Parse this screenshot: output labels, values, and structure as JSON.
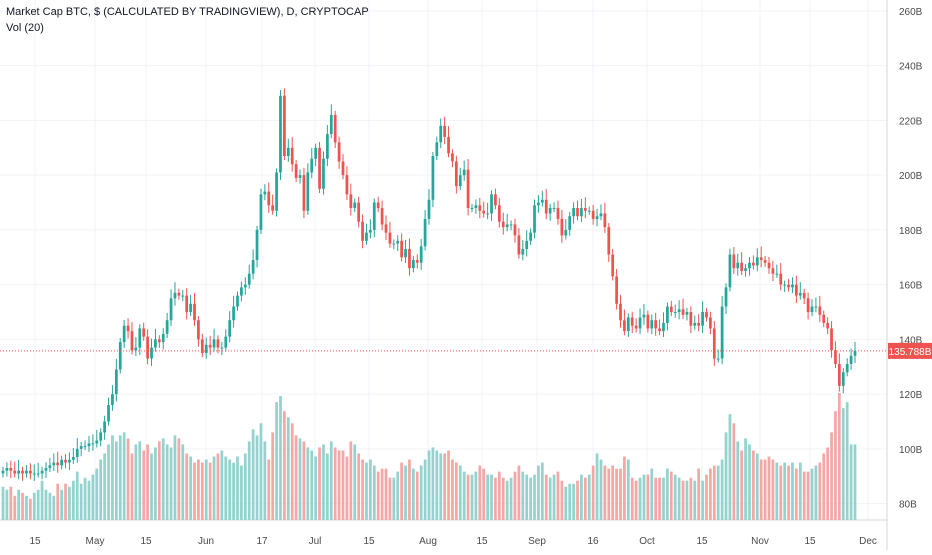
{
  "legend": {
    "title": "Market Cap BTC, $ (CALCULATED BY TRADINGVIEW), D, CRYPTOCAP",
    "indicator": "Vol (20)"
  },
  "last_price_label": "135.788B",
  "colors": {
    "up": "#26a69a",
    "down": "#ef5350",
    "vol_up": "#94d3cd",
    "vol_down": "#f5a7a6",
    "grid": "#f0f3fa",
    "axis_text": "#4a4a4a",
    "price_line": "#ef5350"
  },
  "chart_data": {
    "type": "candlestick",
    "x_tick_labels": [
      "15",
      "May",
      "15",
      "Jun",
      "17",
      "Jul",
      "15",
      "Aug",
      "15",
      "Sep",
      "16",
      "Oct",
      "15",
      "Nov",
      "15",
      "Dec"
    ],
    "y_tick_labels": [
      "80B",
      "100B",
      "120B",
      "140B",
      "160B",
      "180B",
      "200B",
      "220B",
      "240B",
      "260B"
    ],
    "y_range_B": [
      74,
      264
    ],
    "grid": true,
    "last_value_B": 135.788,
    "close_B": [
      92,
      93,
      92,
      91,
      92,
      91,
      92,
      91,
      91,
      91,
      92,
      93,
      94,
      95,
      94,
      96,
      95,
      96,
      97,
      100,
      101,
      101,
      102,
      102,
      103,
      106,
      110,
      116,
      120,
      129,
      139,
      145,
      143,
      136,
      137,
      144,
      141,
      133,
      137,
      140,
      139,
      142,
      147,
      155,
      157,
      156,
      156,
      150,
      153,
      147,
      140,
      135,
      138,
      137,
      140,
      137,
      137,
      141,
      147,
      152,
      156,
      159,
      160,
      164,
      169,
      180,
      193,
      194,
      189,
      187,
      201,
      229,
      207,
      210,
      204,
      199,
      200,
      187,
      201,
      206,
      210,
      195,
      206,
      215,
      222,
      212,
      205,
      200,
      193,
      188,
      190,
      183,
      176,
      179,
      180,
      190,
      188,
      182,
      179,
      175,
      175,
      176,
      170,
      173,
      166,
      169,
      168,
      174,
      184,
      191,
      207,
      212,
      218,
      214,
      208,
      205,
      196,
      200,
      202,
      188,
      188,
      189,
      187,
      186,
      186,
      193,
      189,
      183,
      181,
      182,
      182,
      178,
      171,
      173,
      176,
      179,
      189,
      190,
      191,
      186,
      188,
      188,
      184,
      178,
      180,
      185,
      188,
      185,
      188,
      187,
      187,
      184,
      185,
      186,
      181,
      171,
      163,
      153,
      147,
      143,
      148,
      145,
      144,
      148,
      149,
      144,
      147,
      144,
      143,
      146,
      152,
      150,
      150,
      151,
      149,
      150,
      145,
      146,
      145,
      150,
      148,
      144,
      133,
      133,
      152,
      159,
      171,
      166,
      168,
      165,
      166,
      168,
      167,
      170,
      169,
      168,
      166,
      164,
      164,
      160,
      160,
      159,
      160,
      156,
      157,
      155,
      150,
      152,
      152,
      149,
      146,
      144,
      136,
      131,
      123,
      128,
      131,
      134,
      135.8
    ],
    "volume_B": [
      89,
      88,
      89,
      86,
      88,
      87,
      86,
      85,
      87,
      88,
      91,
      88,
      87,
      86,
      90,
      88,
      90,
      89,
      91,
      94,
      90,
      92,
      91,
      93,
      95,
      98,
      100,
      103,
      106,
      104,
      106,
      107,
      105,
      100,
      103,
      104,
      101,
      103,
      100,
      102,
      104,
      105,
      103,
      102,
      106,
      105,
      103,
      100,
      99,
      97,
      98,
      97,
      98,
      97,
      99,
      100,
      101,
      99,
      98,
      97,
      99,
      96,
      100,
      104,
      108,
      106,
      110,
      104,
      98,
      107,
      117,
      119,
      114,
      112,
      110,
      106,
      105,
      104,
      102,
      101,
      99,
      102,
      103,
      100,
      104,
      102,
      101,
      101,
      99,
      104,
      103,
      100,
      98,
      97,
      98,
      96,
      94,
      95,
      95,
      92,
      92,
      94,
      97,
      96,
      98,
      95,
      94,
      96,
      98,
      101,
      102,
      101,
      100,
      100,
      101,
      98,
      97,
      96,
      94,
      93,
      93,
      94,
      96,
      95,
      93,
      93,
      92,
      94,
      92,
      91,
      92,
      94,
      96,
      94,
      93,
      92,
      93,
      96,
      97,
      93,
      92,
      93,
      94,
      91,
      89,
      90,
      90,
      91,
      93,
      92,
      93,
      96,
      100,
      98,
      96,
      95,
      96,
      95,
      95,
      99,
      98,
      92,
      91,
      92,
      93,
      93,
      95,
      92,
      92,
      92,
      95,
      94,
      93,
      92,
      91,
      91,
      92,
      91,
      95,
      91,
      93,
      95,
      96,
      96,
      98,
      107,
      113,
      110,
      104,
      101,
      105,
      103,
      101,
      100,
      98,
      98,
      99,
      98,
      97,
      96,
      97,
      96,
      97,
      95,
      97,
      94,
      94,
      95,
      96,
      97,
      100,
      102,
      107,
      114,
      120,
      115,
      117,
      103,
      103
    ]
  }
}
